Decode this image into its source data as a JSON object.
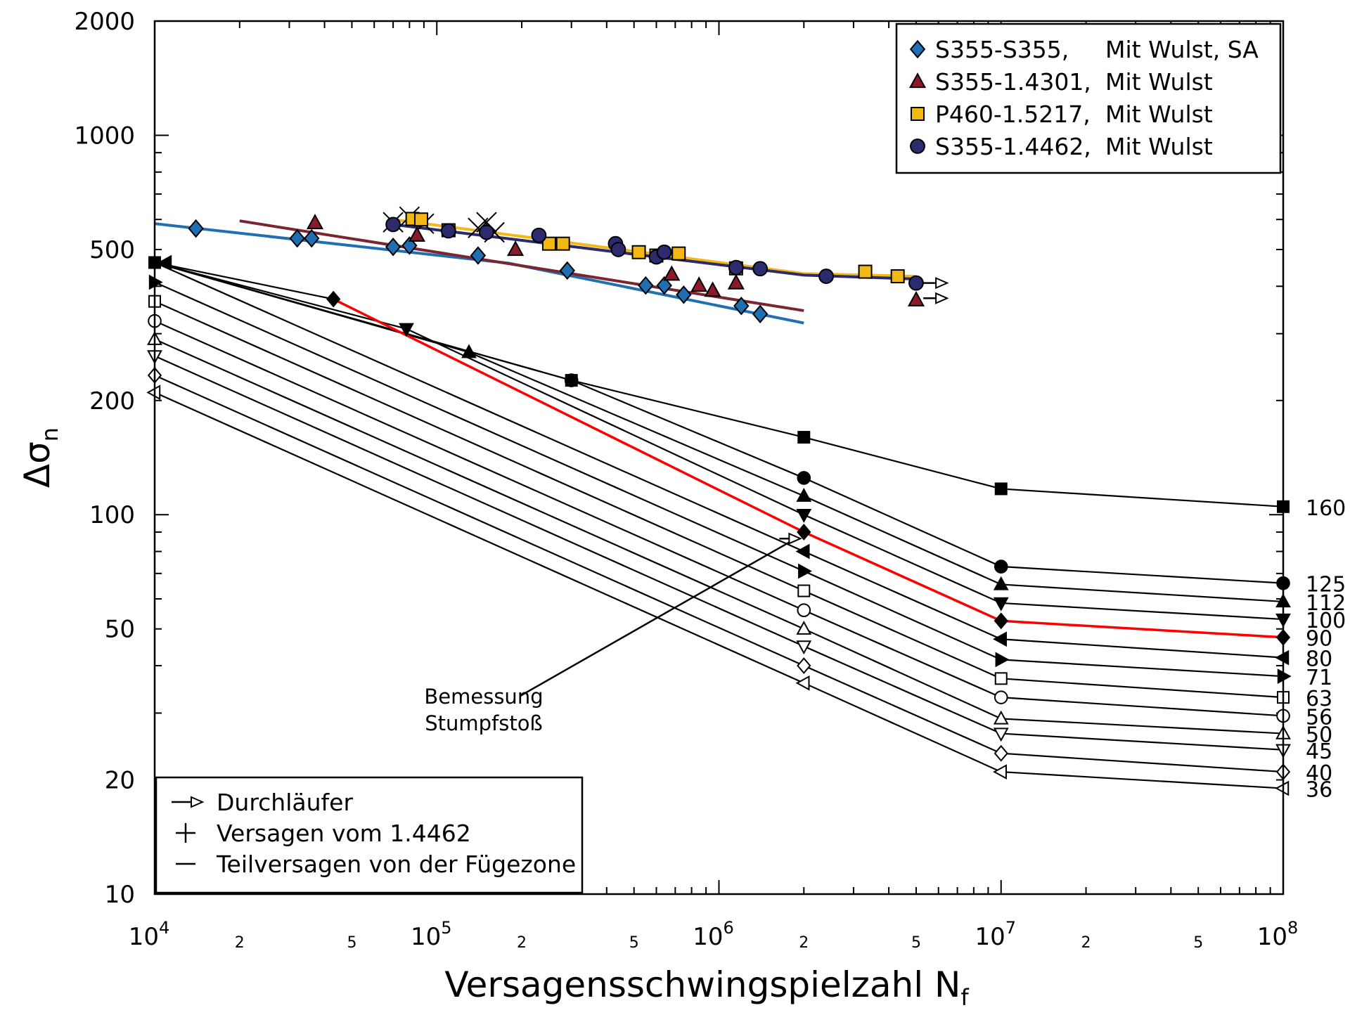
{
  "chart_data": {
    "type": "line",
    "xlabel": "Versagensschwingspielzahl N",
    "xlabel_sub": "f",
    "ylabel": "Δσ",
    "ylabel_sub": "n",
    "x_scale": "log",
    "y_scale": "log",
    "xlim": [
      10000,
      100000000
    ],
    "ylim": [
      10,
      2000
    ],
    "x_major_ticks": [
      {
        "value": 10000,
        "base": "10",
        "exp": "4"
      },
      {
        "value": 100000,
        "base": "10",
        "exp": "5"
      },
      {
        "value": 1000000,
        "base": "10",
        "exp": "6"
      },
      {
        "value": 10000000,
        "base": "10",
        "exp": "7"
      },
      {
        "value": 100000000,
        "base": "10",
        "exp": "8"
      }
    ],
    "x_minor_labels": [
      {
        "value": 20000,
        "label": "2"
      },
      {
        "value": 50000,
        "label": "5"
      },
      {
        "value": 200000,
        "label": "2"
      },
      {
        "value": 500000,
        "label": "5"
      },
      {
        "value": 2000000,
        "label": "2"
      },
      {
        "value": 5000000,
        "label": "5"
      },
      {
        "value": 20000000,
        "label": "2"
      },
      {
        "value": 50000000,
        "label": "5"
      }
    ],
    "y_tick_labels": [
      {
        "value": 10,
        "label": "10"
      },
      {
        "value": 20,
        "label": "20"
      },
      {
        "value": 50,
        "label": "50"
      },
      {
        "value": 100,
        "label": "100"
      },
      {
        "value": 200,
        "label": "200"
      },
      {
        "value": 500,
        "label": "500"
      },
      {
        "value": 1000,
        "label": "1000"
      },
      {
        "value": 2000,
        "label": "2000"
      }
    ],
    "fat_classes": [
      {
        "label": "160",
        "marker": "square",
        "fill": "#000000",
        "points": [
          [
            10000,
            462
          ],
          [
            300000,
            226
          ],
          [
            2000000,
            160
          ],
          [
            10000000,
            117
          ],
          [
            100000000,
            105
          ]
        ]
      },
      {
        "label": "125",
        "marker": "circle",
        "fill": "#000000",
        "points": [
          [
            10000,
            462
          ],
          [
            300000,
            226
          ],
          [
            2000000,
            125
          ],
          [
            10000000,
            73
          ],
          [
            100000000,
            66
          ]
        ]
      },
      {
        "label": "112",
        "marker": "triangle-up",
        "fill": "#000000",
        "points": [
          [
            10000,
            462
          ],
          [
            130000,
            268
          ],
          [
            2000000,
            112
          ],
          [
            10000000,
            65.5
          ],
          [
            100000000,
            59
          ]
        ]
      },
      {
        "label": "100",
        "marker": "triangle-down",
        "fill": "#000000",
        "points": [
          [
            10000,
            462
          ],
          [
            78000,
            309
          ],
          [
            2000000,
            100
          ],
          [
            10000000,
            58.5
          ],
          [
            100000000,
            53
          ]
        ]
      },
      {
        "label": "90",
        "marker": "diamond",
        "fill": "#000000",
        "points": [
          [
            10000,
            462
          ],
          [
            43000,
            370
          ],
          [
            2000000,
            90
          ],
          [
            10000000,
            52.5
          ],
          [
            100000000,
            47.5
          ]
        ]
      },
      {
        "label": "80",
        "marker": "triangle-left",
        "fill": "#000000",
        "points": [
          [
            10000,
            462
          ],
          [
            2000000,
            80
          ],
          [
            10000000,
            47
          ],
          [
            100000000,
            42
          ]
        ]
      },
      {
        "label": "71",
        "marker": "triangle-right",
        "fill": "#000000",
        "points": [
          [
            10000,
            410
          ],
          [
            2000000,
            71
          ],
          [
            10000000,
            41.5
          ],
          [
            100000000,
            37.5
          ]
        ]
      },
      {
        "label": "63",
        "marker": "square",
        "fill": "#ffffff",
        "points": [
          [
            10000,
            365
          ],
          [
            2000000,
            63
          ],
          [
            10000000,
            37
          ],
          [
            100000000,
            33
          ]
        ]
      },
      {
        "label": "56",
        "marker": "circle",
        "fill": "#ffffff",
        "points": [
          [
            10000,
            324
          ],
          [
            2000000,
            56
          ],
          [
            10000000,
            33
          ],
          [
            100000000,
            29.5
          ]
        ]
      },
      {
        "label": "50",
        "marker": "triangle-up",
        "fill": "#ffffff",
        "points": [
          [
            10000,
            290
          ],
          [
            2000000,
            50
          ],
          [
            10000000,
            29
          ],
          [
            100000000,
            26.5
          ]
        ]
      },
      {
        "label": "45",
        "marker": "triangle-down",
        "fill": "#ffffff",
        "points": [
          [
            10000,
            262
          ],
          [
            2000000,
            45
          ],
          [
            10000000,
            26.5
          ],
          [
            100000000,
            24
          ]
        ]
      },
      {
        "label": "40",
        "marker": "diamond",
        "fill": "#ffffff",
        "points": [
          [
            10000,
            233
          ],
          [
            2000000,
            40
          ],
          [
            10000000,
            23.5
          ],
          [
            100000000,
            21
          ]
        ]
      },
      {
        "label": "36",
        "marker": "triangle-left",
        "fill": "#ffffff",
        "points": [
          [
            10000,
            210
          ],
          [
            2000000,
            36
          ],
          [
            10000000,
            21
          ],
          [
            100000000,
            19
          ]
        ]
      }
    ],
    "highlight_class": "90",
    "highlight_color": "#ff0000",
    "series": [
      {
        "name": "S355-S355,",
        "desc": "Mit Wulst, SA",
        "marker": "diamond",
        "color": "#1f6fb2",
        "line_color": "#1f6fb2",
        "fit": [
          [
            10000,
            585
          ],
          [
            180000,
            460
          ],
          [
            2000000,
            320
          ]
        ],
        "points": [
          [
            14000,
            568
          ],
          [
            32000,
            535
          ],
          [
            36000,
            535
          ],
          [
            70000,
            508
          ],
          [
            80000,
            512
          ],
          [
            140000,
            482
          ],
          [
            290000,
            440
          ],
          [
            550000,
            402
          ],
          [
            640000,
            402
          ],
          [
            750000,
            380
          ],
          [
            1200000,
            355
          ],
          [
            1400000,
            338
          ]
        ]
      },
      {
        "name": "S355-1.4301,",
        "desc": "Mit Wulst",
        "marker": "triangle-up",
        "color": "#8b1a2b",
        "line_color": "#7a2530",
        "fit": [
          [
            20000,
            595
          ],
          [
            2000000,
            345
          ]
        ],
        "points": [
          [
            37000,
            588
          ],
          [
            85000,
            545
          ],
          [
            190000,
            500
          ],
          [
            680000,
            430
          ],
          [
            850000,
            402
          ],
          [
            950000,
            390
          ],
          [
            1150000,
            408
          ],
          [
            5000000,
            368
          ]
        ]
      },
      {
        "name": "P460-1.5217,",
        "desc": "Mit Wulst",
        "marker": "square",
        "color": "#f3b814",
        "line_color": "#f3b814",
        "fit": [
          [
            70000,
            600
          ],
          [
            2000000,
            432
          ],
          [
            5000000,
            425
          ]
        ],
        "points": [
          [
            82000,
            602
          ],
          [
            88000,
            600
          ],
          [
            110000,
            562
          ],
          [
            250000,
            518
          ],
          [
            280000,
            518
          ],
          [
            520000,
            492
          ],
          [
            600000,
            482
          ],
          [
            720000,
            488
          ],
          [
            1150000,
            446
          ],
          [
            3300000,
            437
          ],
          [
            4300000,
            425
          ]
        ]
      },
      {
        "name": "S355-1.4462,",
        "desc": "Mit Wulst",
        "marker": "circle",
        "color": "#2b2b6e",
        "line_color": "#2b2b6e",
        "fit": [
          [
            70000,
            582
          ],
          [
            2000000,
            428
          ],
          [
            5000000,
            418
          ]
        ],
        "points": [
          [
            70000,
            582
          ],
          [
            110000,
            560
          ],
          [
            150000,
            555
          ],
          [
            230000,
            545
          ],
          [
            430000,
            518
          ],
          [
            440000,
            500
          ],
          [
            600000,
            478
          ],
          [
            640000,
            492
          ],
          [
            1150000,
            448
          ],
          [
            1400000,
            445
          ],
          [
            2400000,
            425
          ],
          [
            5000000,
            408
          ]
        ]
      }
    ],
    "cross_markers": [
      [
        70000,
        590
      ],
      [
        80000,
        610
      ],
      [
        90000,
        585
      ],
      [
        140000,
        570
      ],
      [
        150000,
        590
      ],
      [
        160000,
        555
      ]
    ],
    "runouts": [
      [
        5300000,
        408
      ],
      [
        5300000,
        372
      ]
    ],
    "annotation": {
      "lines": [
        "Bemessung",
        "Stumpfstoß"
      ],
      "target": [
        1900000,
        88
      ]
    },
    "legend_top_right": [
      {
        "name": "S355-S355,",
        "desc": "Mit Wulst, SA"
      },
      {
        "name": "S355-1.4301,",
        "desc": "Mit Wulst"
      },
      {
        "name": "P460-1.5217,",
        "desc": "Mit Wulst"
      },
      {
        "name": "S355-1.4462,",
        "desc": "Mit Wulst"
      }
    ],
    "legend_bottom_left": [
      {
        "symbol": "runout-arrow",
        "label": "Durchläufer"
      },
      {
        "symbol": "plus",
        "label": "Versagen vom 1.4462"
      },
      {
        "symbol": "minus",
        "label": "Teilversagen von der Fügezone"
      }
    ]
  }
}
